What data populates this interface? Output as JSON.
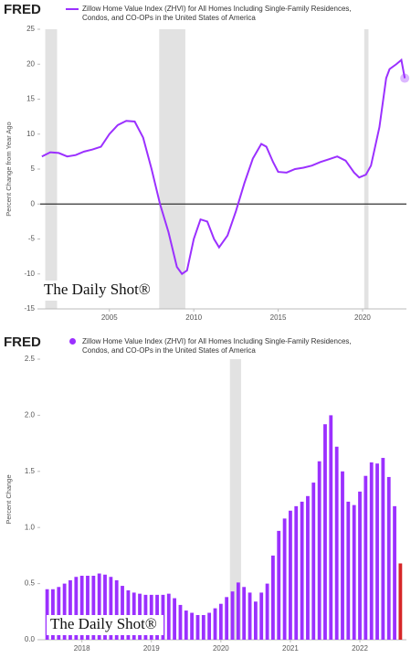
{
  "chart_data": [
    {
      "type": "line",
      "logo": "FRED",
      "ylabel": "Percent Change from Year Ago",
      "watermark": "The Daily Shot®",
      "x": [
        2001.0,
        2001.5,
        2002.0,
        2002.5,
        2003.0,
        2003.5,
        2004.0,
        2004.5,
        2005.0,
        2005.5,
        2006.0,
        2006.5,
        2007.0,
        2007.5,
        2008.0,
        2008.5,
        2009.0,
        2009.3,
        2009.6,
        2010.0,
        2010.4,
        2010.8,
        2011.2,
        2011.5,
        2012.0,
        2012.5,
        2013.0,
        2013.5,
        2014.0,
        2014.3,
        2014.7,
        2015.0,
        2015.5,
        2016.0,
        2016.5,
        2017.0,
        2017.5,
        2018.0,
        2018.5,
        2019.0,
        2019.5,
        2019.8,
        2020.2,
        2020.5,
        2021.0,
        2021.4,
        2021.6,
        2022.0,
        2022.3,
        2022.5
      ],
      "series": [
        {
          "name": "Zillow Home Value Index (ZHVI) for All Homes Including Single-Family Residences, Condos, and CO-OPs in the United States of America",
          "color": "#9b30ff",
          "values": [
            6.8,
            7.4,
            7.3,
            6.8,
            7.0,
            7.5,
            7.8,
            8.2,
            10.0,
            11.3,
            11.9,
            11.8,
            9.5,
            5.0,
            0.0,
            -4.0,
            -9.0,
            -10.0,
            -9.5,
            -5.0,
            -2.2,
            -2.5,
            -5.0,
            -6.2,
            -4.5,
            -1.0,
            3.0,
            6.5,
            8.6,
            8.2,
            6.0,
            4.6,
            4.5,
            5.0,
            5.2,
            5.5,
            6.0,
            6.4,
            6.8,
            6.2,
            4.5,
            3.8,
            4.2,
            5.5,
            11.0,
            18.0,
            19.3,
            20.0,
            20.6,
            18.0
          ]
        }
      ],
      "last_point_marker": true,
      "recessions": [
        [
          2001.2,
          2001.9
        ],
        [
          2007.95,
          2009.5
        ],
        [
          2020.1,
          2020.35
        ]
      ],
      "xlim": [
        2000.9,
        2022.6
      ],
      "xticks": [
        2005,
        2010,
        2015,
        2020
      ],
      "ylim": [
        -15,
        25
      ],
      "yticks": [
        -15,
        -10,
        -5,
        0,
        5,
        10,
        15,
        20,
        25
      ],
      "grid": false
    },
    {
      "type": "bar",
      "logo": "FRED",
      "ylabel": "Percent Change",
      "watermark": "The Daily Shot®",
      "x": [
        2017.5,
        2017.583,
        2017.667,
        2017.75,
        2017.833,
        2017.917,
        2018.0,
        2018.083,
        2018.167,
        2018.25,
        2018.333,
        2018.417,
        2018.5,
        2018.583,
        2018.667,
        2018.75,
        2018.833,
        2018.917,
        2019.0,
        2019.083,
        2019.167,
        2019.25,
        2019.333,
        2019.417,
        2019.5,
        2019.583,
        2019.667,
        2019.75,
        2019.833,
        2019.917,
        2020.0,
        2020.083,
        2020.167,
        2020.25,
        2020.333,
        2020.417,
        2020.5,
        2020.583,
        2020.667,
        2020.75,
        2020.833,
        2020.917,
        2021.0,
        2021.083,
        2021.167,
        2021.25,
        2021.333,
        2021.417,
        2021.5,
        2021.583,
        2021.667,
        2021.75,
        2021.833,
        2021.917,
        2022.0,
        2022.083,
        2022.167,
        2022.25,
        2022.333,
        2022.417,
        2022.5,
        2022.583
      ],
      "series": [
        {
          "name": "Zillow Home Value Index (ZHVI) for All Homes Including Single-Family Residences, Condos, and CO-OPs in the United States of America",
          "color": "#9b30ff",
          "values": [
            0.45,
            0.45,
            0.47,
            0.5,
            0.53,
            0.56,
            0.57,
            0.57,
            0.57,
            0.59,
            0.58,
            0.56,
            0.53,
            0.48,
            0.44,
            0.42,
            0.41,
            0.4,
            0.4,
            0.4,
            0.4,
            0.41,
            0.37,
            0.31,
            0.26,
            0.24,
            0.22,
            0.22,
            0.24,
            0.28,
            0.32,
            0.38,
            0.43,
            0.51,
            0.47,
            0.42,
            0.34,
            0.42,
            0.5,
            0.75,
            0.97,
            1.08,
            1.15,
            1.19,
            1.23,
            1.28,
            1.4,
            1.59,
            1.92,
            2.0,
            1.72,
            1.5,
            1.23,
            1.2,
            1.32,
            1.46,
            1.58,
            1.57,
            1.62,
            1.45,
            1.19,
            0.68
          ]
        }
      ],
      "last_bar_color": "#d62728",
      "recessions": [
        [
          2020.13,
          2020.29
        ]
      ],
      "xlim": [
        2017.4,
        2022.67
      ],
      "xticks": [
        2018,
        2019,
        2020,
        2021,
        2022
      ],
      "ylim": [
        0,
        2.5
      ],
      "yticks": [
        {
          "value": 0,
          "label": "0.0"
        },
        0.5,
        {
          "value": 1,
          "label": "1.0"
        },
        1.5,
        {
          "value": 2,
          "label": "2.0"
        },
        2.5
      ],
      "grid": false
    }
  ]
}
